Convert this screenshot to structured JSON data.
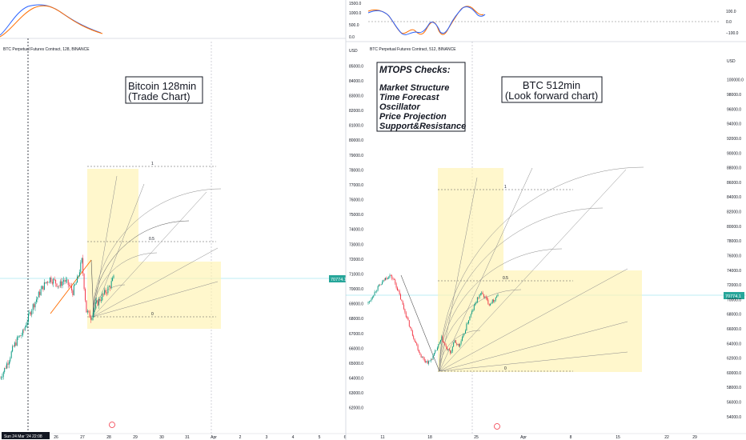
{
  "left": {
    "chart_title": "BTC Perpetual Futures Contract, 128, BINANCE",
    "annotation": [
      "Bitcoin 128min",
      "(Trade Chart)"
    ],
    "price_tag": "70774.1",
    "crosshair_date": "Sun 24 Mar '24  22:08",
    "x_labels": [
      "26",
      "27",
      "28",
      "29",
      "30",
      "31",
      "Apr",
      "2",
      "3",
      "4",
      "5",
      "6"
    ],
    "fib_labels": [
      "1",
      "0.5",
      "0"
    ]
  },
  "right": {
    "chart_title": "BTC Perpetual Futures Contract, 512, BINANCE",
    "annotation": [
      "BTC 512min",
      "(Look forward chart)"
    ],
    "checklist_title": "MTOPS Checks:",
    "checklist": [
      "Market Structure",
      "Time Forecast",
      "Oscillator",
      "Price Projection",
      "Support&Resistance"
    ],
    "price_tag": "70774.1",
    "osc_labels": [
      "1000.0",
      "500.0",
      "0.0"
    ],
    "osc_right_labels": [
      "100.0",
      "0.0",
      "−100.0"
    ],
    "x_labels": [
      "11",
      "18",
      "25",
      "Apr",
      "8",
      "15",
      "22",
      "29"
    ],
    "fib_labels": [
      "1",
      "0.5",
      "0"
    ]
  },
  "chart_data": [
    {
      "type": "line",
      "title": "BTC Perpetual Futures Contract, 128, BINANCE",
      "y_unit": "USD",
      "y_ticks": [
        85000,
        84000,
        83000,
        82000,
        81000,
        80000,
        79000,
        78000,
        77000,
        76000,
        75000,
        74000,
        73000,
        72000,
        71000,
        70000,
        69000,
        68000,
        67000,
        66000,
        65000,
        64000,
        63000,
        62000
      ],
      "ylim": [
        61500,
        85500
      ],
      "x_ticks": [
        "26",
        "27",
        "28",
        "29",
        "30",
        "31",
        "Apr",
        "2",
        "3",
        "4",
        "5",
        "6"
      ],
      "last_price": 70774.1,
      "price_path": [
        64000,
        64600,
        65300,
        66100,
        66700,
        67000,
        67900,
        68700,
        69300,
        69900,
        70400,
        70700,
        70500,
        70200,
        70600,
        70300,
        69800,
        70600,
        71900,
        68500,
        68100,
        68900,
        69300,
        69700,
        70100,
        70700
      ]
    },
    {
      "type": "line",
      "title": "BTC Perpetual Futures Contract, 512, BINANCE",
      "y_unit": "USD",
      "y_ticks": [
        100000,
        98000,
        96000,
        94000,
        92000,
        90000,
        88000,
        86000,
        84000,
        82000,
        80000,
        78000,
        76000,
        74000,
        72000,
        70000,
        68000,
        66000,
        64000,
        62000,
        60000,
        58000,
        56000,
        54000
      ],
      "ylim": [
        53000,
        101500
      ],
      "x_ticks": [
        "11",
        "18",
        "25",
        "Apr",
        "8",
        "15",
        "22",
        "29"
      ],
      "last_price": 70774.1,
      "price_path": [
        69500,
        70500,
        71500,
        72100,
        72900,
        73300,
        72600,
        71000,
        69200,
        67400,
        65600,
        64100,
        62500,
        61700,
        61400,
        62200,
        63400,
        64700,
        63400,
        62700,
        64300,
        63600,
        65000,
        66900,
        68300,
        69800,
        70900,
        70300,
        69400,
        69900,
        70700
      ]
    }
  ]
}
